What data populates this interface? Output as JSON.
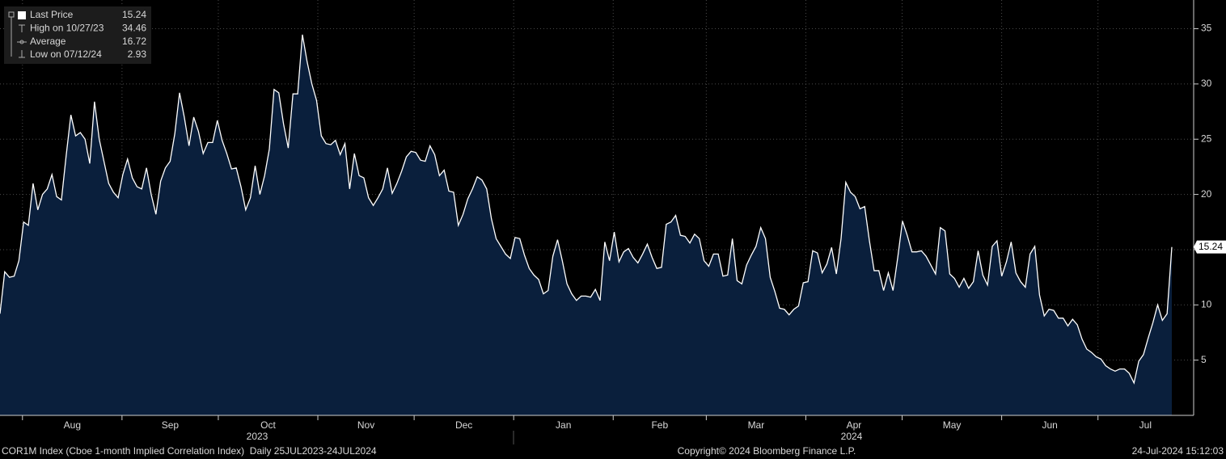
{
  "chart_data": {
    "type": "area",
    "legend": [
      {
        "name": "Last Price",
        "value": 15.24
      },
      {
        "name": "High on 10/27/23",
        "value": 34.46
      },
      {
        "name": "Average",
        "value": 16.72
      },
      {
        "name": "Low on 07/12/24",
        "value": 2.93
      }
    ],
    "color": "#0a1f3c",
    "line_color": "#ffffff",
    "xlim": [
      "2023-07-25",
      "2024-07-24"
    ],
    "xticks": [
      {
        "value": "2023-08",
        "label": "Aug"
      },
      {
        "value": "2023-09",
        "label": "Sep"
      },
      {
        "value": "2023-10",
        "label": "Oct"
      },
      {
        "value": "2023-11",
        "label": "Nov"
      },
      {
        "value": "2023-12",
        "label": "Dec"
      },
      {
        "value": "2024-01",
        "label": "Jan"
      },
      {
        "value": "2024-02",
        "label": "Feb"
      },
      {
        "value": "2024-03",
        "label": "Mar"
      },
      {
        "value": "2024-04",
        "label": "Apr"
      },
      {
        "value": "2024-05",
        "label": "May"
      },
      {
        "value": "2024-06",
        "label": "Jun"
      },
      {
        "value": "2024-07",
        "label": "Jul"
      }
    ],
    "years": [
      "2023",
      "2024"
    ],
    "ylim": [
      0,
      37.6
    ],
    "yticks": [
      5,
      10,
      15,
      20,
      25,
      30,
      35
    ],
    "grid": true,
    "values": [
      9.2,
      13,
      12.5,
      12.6,
      14,
      17.5,
      17.2,
      21,
      18.6,
      20,
      20.5,
      21.8,
      19.8,
      19.5,
      23.5,
      27.2,
      25.3,
      25.6,
      25,
      22.8,
      28.4,
      25,
      23,
      21,
      20.2,
      19.7,
      21.8,
      23.2,
      21.5,
      20.7,
      20.5,
      22.4,
      20,
      18.2,
      21.2,
      22.4,
      23,
      25.5,
      29.2,
      27,
      24.4,
      27,
      25.7,
      23.7,
      24.7,
      24.7,
      26.7,
      24.9,
      23.7,
      22.3,
      22.4,
      20.7,
      18.6,
      19.7,
      22.6,
      20,
      21.7,
      24.1,
      29.5,
      29.2,
      26.4,
      24.2,
      29.1,
      29.1,
      34.46,
      32,
      30,
      28.5,
      25.3,
      24.6,
      24.5,
      24.9,
      23.6,
      24.6,
      20.5,
      23.7,
      21.7,
      21.5,
      19.7,
      19,
      19.7,
      20.5,
      22.4,
      20.1,
      21,
      22.1,
      23.4,
      23.9,
      23.8,
      23.1,
      23,
      24.4,
      23.6,
      21.7,
      22.2,
      20.3,
      20.2,
      17.2,
      18.2,
      19.6,
      20.5,
      21.6,
      21.3,
      20.5,
      17.8,
      16,
      15.3,
      14.6,
      14.2,
      16.1,
      16,
      14.5,
      13.3,
      12.7,
      12.3,
      11,
      11.3,
      14.4,
      15.9,
      14,
      11.9,
      11,
      10.4,
      10.8,
      10.8,
      10.7,
      11.4,
      10.4,
      15.7,
      14,
      16.6,
      13.9,
      14.8,
      15.1,
      14.3,
      13.8,
      14.6,
      15.5,
      14.3,
      13.3,
      13.4,
      17.3,
      17.5,
      18.1,
      16.3,
      16.2,
      15.6,
      16.4,
      16,
      14,
      13.5,
      14.6,
      14.6,
      12.6,
      12.7,
      16,
      12.2,
      11.9,
      13.6,
      14.5,
      15.3,
      17,
      16,
      12.5,
      11.2,
      9.7,
      9.6,
      9.1,
      9.6,
      9.9,
      12,
      12.1,
      14.9,
      14.7,
      12.9,
      13.7,
      15.2,
      12.8,
      16,
      21.1,
      20.2,
      19.8,
      18.7,
      18.9,
      15.8,
      13.1,
      13.1,
      11.3,
      12.9,
      11.3,
      14.3,
      17.6,
      16.3,
      14.8,
      14.8,
      14.9,
      14.4,
      13.6,
      12.8,
      17,
      16.7,
      12.8,
      12.4,
      11.6,
      12.4,
      11.5,
      12.1,
      14.9,
      12.7,
      11.8,
      15.3,
      15.8,
      12.6,
      13.9,
      15.7,
      12.9,
      12.1,
      11.6,
      14.6,
      15.3,
      10.9,
      9,
      9.6,
      9.5,
      8.8,
      8.8,
      8.1,
      8.7,
      8.2,
      6.9,
      6,
      5.7,
      5.3,
      5.1,
      4.5,
      4.2,
      4,
      4.2,
      4.2,
      3.8,
      2.93,
      4.9,
      5.5,
      7,
      8.4,
      10,
      8.6,
      9.2,
      15.24
    ],
    "footer_left": "COR1M Index (Cboe 1-month Implied Correlation Index)  Daily 25JUL2023-24JUL2024",
    "footer_center": "Copyright© 2024 Bloomberg Finance L.P.",
    "footer_right": "24-Jul-2024 15:12:03"
  }
}
